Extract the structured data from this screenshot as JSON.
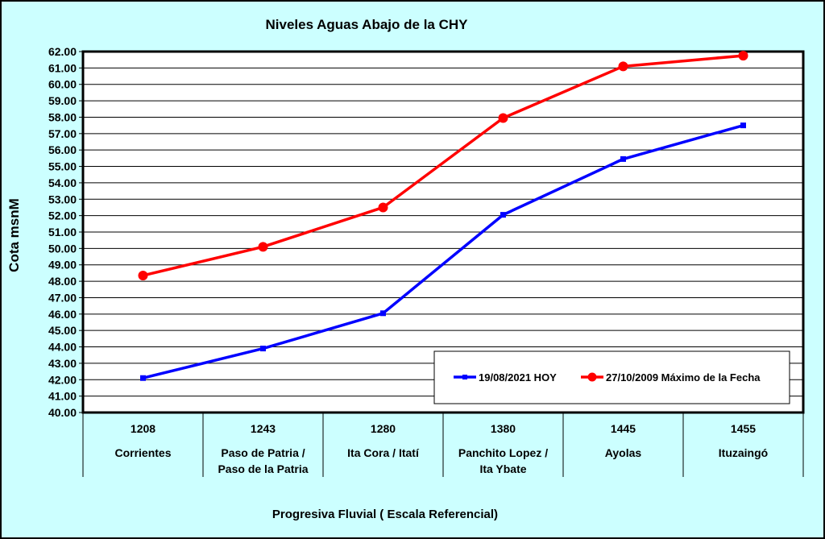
{
  "chart_data": {
    "type": "line",
    "title": "Niveles Aguas Abajo de la CHY",
    "ylabel": "Cota msnM",
    "xlabel": "Progresiva Fluvial ( Escala Referencial)",
    "ylim": [
      40,
      62
    ],
    "ystep": 1,
    "grid": true,
    "legend_position": "bottom-right",
    "colors": {
      "background": "#ccffff",
      "plot_area": "#ffffff",
      "series_hoy": "#0000ff",
      "series_max": "#ff0000"
    },
    "categories": [
      {
        "km": "1208",
        "name_line1": "Corrientes",
        "name_line2": ""
      },
      {
        "km": "1243",
        "name_line1": "Paso de Patria /",
        "name_line2": "Paso de la Patria"
      },
      {
        "km": "1280",
        "name_line1": "Ita Cora / Itatí",
        "name_line2": ""
      },
      {
        "km": "1380",
        "name_line1": "Panchito Lopez /",
        "name_line2": "Ita Ybate"
      },
      {
        "km": "1445",
        "name_line1": "Ayolas",
        "name_line2": ""
      },
      {
        "km": "1455",
        "name_line1": "Ituzaingó",
        "name_line2": ""
      }
    ],
    "series": [
      {
        "name": "19/08/2021 HOY",
        "marker": "square",
        "values": [
          42.1,
          43.9,
          46.05,
          52.05,
          55.45,
          57.5
        ]
      },
      {
        "name": "27/10/2009 Máximo de la Fecha",
        "marker": "circle",
        "values": [
          48.35,
          50.1,
          52.5,
          57.95,
          61.1,
          61.75
        ]
      }
    ]
  }
}
